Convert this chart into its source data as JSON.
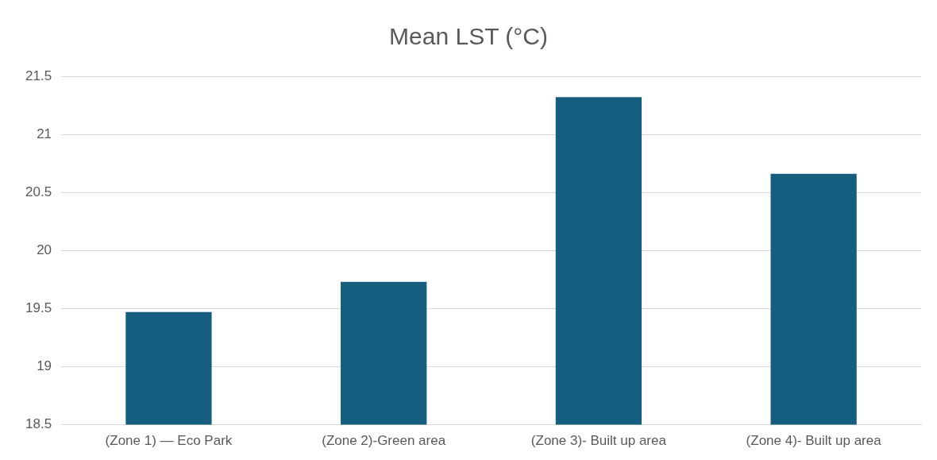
{
  "chart_data": {
    "type": "bar",
    "title": "Mean LST (°C)",
    "categories": [
      "(Zone 1) — Eco Park",
      "(Zone 2)-Green area",
      "(Zone 3)- Built up area",
      "(Zone 4)- Built up area"
    ],
    "values": [
      19.47,
      19.73,
      21.32,
      20.66
    ],
    "color": "#165e80",
    "ylim": [
      18.5,
      21.5
    ],
    "yticks": [
      18.5,
      19,
      19.5,
      20,
      20.5,
      21,
      21.5
    ],
    "grid": "y",
    "legend": false
  }
}
